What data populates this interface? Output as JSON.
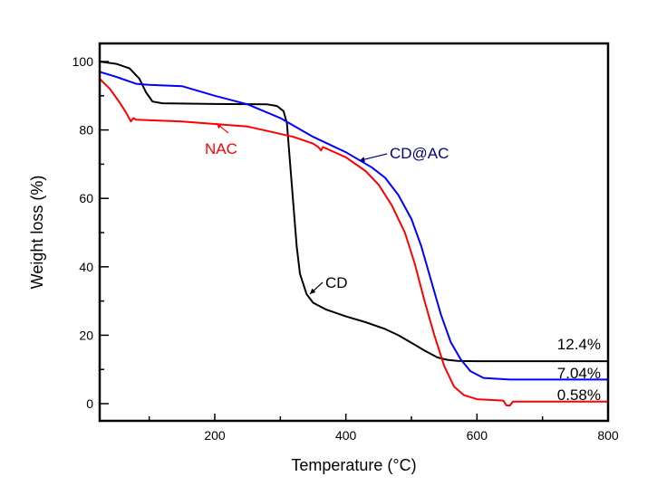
{
  "chart_data": {
    "type": "line",
    "title": "",
    "xlabel": "Temperature (°C)",
    "ylabel": "Weight loss (%)",
    "xlim": [
      24,
      800
    ],
    "ylim": [
      -5,
      105
    ],
    "x_ticks": [
      200,
      400,
      600,
      800
    ],
    "x_tick_labels": [
      "200",
      "400",
      "600",
      "800"
    ],
    "x_minor_ticks": [
      100,
      300,
      500,
      700
    ],
    "y_ticks": [
      0,
      20,
      40,
      60,
      80,
      100
    ],
    "y_tick_labels": [
      "0",
      "20",
      "40",
      "60",
      "80",
      "100"
    ],
    "y_minor_ticks": [
      10,
      30,
      50,
      70,
      90
    ],
    "grid": false,
    "legend": "none (inline annotations)",
    "series": [
      {
        "name": "CD",
        "color": "#000000",
        "x": [
          24,
          50,
          70,
          85,
          95,
          105,
          120,
          200,
          280,
          295,
          305,
          310,
          315,
          320,
          325,
          330,
          340,
          350,
          370,
          400,
          430,
          460,
          480,
          500,
          520,
          540,
          555,
          570,
          600,
          700,
          800
        ],
        "y": [
          100,
          99.3,
          98,
          95,
          91,
          88.3,
          87.8,
          87.6,
          87.5,
          87,
          85.5,
          82,
          70,
          58,
          46,
          38,
          32,
          29.5,
          27.5,
          25.5,
          23.8,
          21.8,
          20,
          17.8,
          15.5,
          13.5,
          12.8,
          12.5,
          12.4,
          12.4,
          12.4
        ]
      },
      {
        "name": "CD@AC",
        "color": "#0000ff",
        "x": [
          24,
          50,
          80,
          100,
          150,
          200,
          250,
          300,
          350,
          400,
          440,
          460,
          480,
          500,
          515,
          530,
          545,
          560,
          575,
          590,
          610,
          650,
          800
        ],
        "y": [
          97,
          95.5,
          93.5,
          93.2,
          92.8,
          90,
          87.5,
          83.5,
          78,
          73.5,
          69,
          66,
          61,
          54,
          46,
          36,
          26,
          18,
          13,
          9.5,
          7.5,
          7.04,
          7.04
        ]
      },
      {
        "name": "NAC",
        "color": "#ff0000",
        "x": [
          24,
          40,
          55,
          65,
          72,
          76,
          80,
          150,
          250,
          320,
          350,
          358,
          362,
          365,
          400,
          430,
          450,
          470,
          490,
          505,
          520,
          535,
          550,
          565,
          580,
          600,
          640,
          645,
          650,
          655,
          700,
          800
        ],
        "y": [
          95,
          92,
          88,
          85,
          82.5,
          83.5,
          83,
          82.5,
          81,
          78,
          76,
          75,
          74,
          75,
          72,
          68,
          64,
          58,
          50,
          41,
          30,
          20,
          11,
          5,
          2.5,
          1.3,
          0.9,
          -0.5,
          -0.6,
          0.6,
          0.58,
          0.58
        ]
      }
    ],
    "annotations": [
      {
        "text": "CD",
        "series": "CD",
        "color": "#000000",
        "arrow_to": [
          345,
          32
        ]
      },
      {
        "text": "CD@AC",
        "series": "CD@AC",
        "color": "#000080",
        "arrow_to": [
          420,
          71
        ]
      },
      {
        "text": "NAC",
        "series": "NAC",
        "color": "#ff0000",
        "arrow_to": [
          202,
          82
        ]
      }
    ],
    "residue_labels": [
      {
        "text": "12.4%",
        "series": "CD",
        "value": 12.4
      },
      {
        "text": "7.04%",
        "series": "CD@AC",
        "value": 7.04
      },
      {
        "text": "0.58%",
        "series": "NAC",
        "value": 0.58
      }
    ]
  }
}
